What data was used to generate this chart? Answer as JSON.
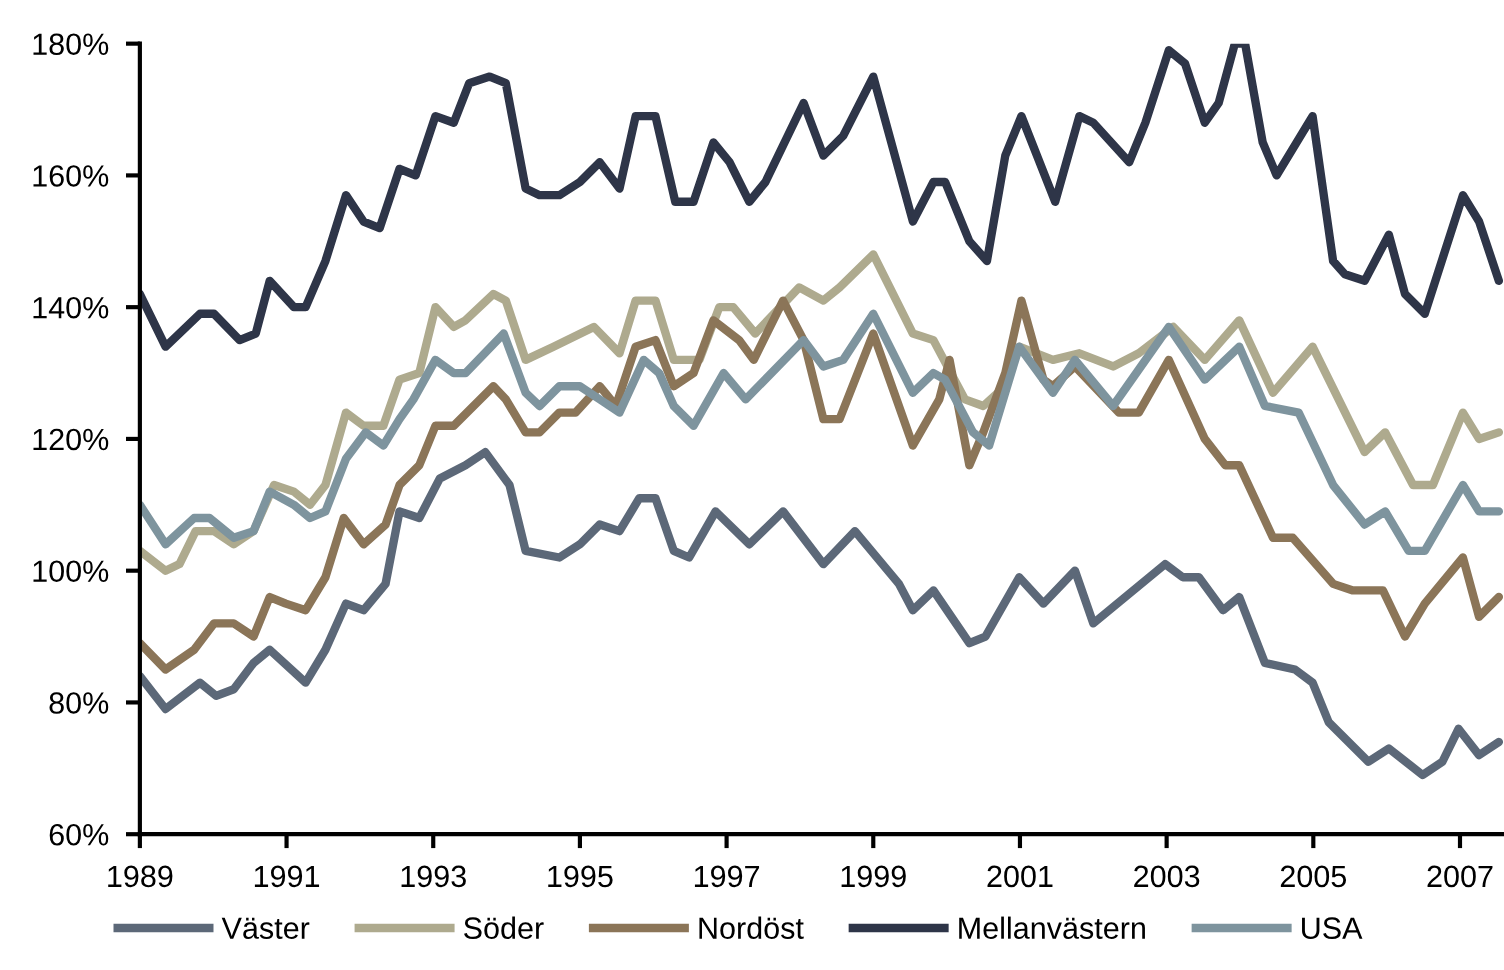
{
  "chart_data": {
    "type": "line",
    "xlim": [
      1989,
      2007.6
    ],
    "xticks": [
      1989,
      1991,
      1993,
      1995,
      1997,
      1999,
      2001,
      2003,
      2005,
      2007
    ],
    "ylim": [
      60,
      180
    ],
    "yticks": [
      {
        "value": 60,
        "label": "60%"
      },
      {
        "value": 80,
        "label": "80%"
      },
      {
        "value": 100,
        "label": "100%"
      },
      {
        "value": 120,
        "label": "120%"
      },
      {
        "value": 140,
        "label": "140%"
      },
      {
        "value": 160,
        "label": "160%"
      },
      {
        "value": 180,
        "label": "180%"
      }
    ],
    "grid": false,
    "legend": "bottom",
    "marker": "none",
    "line_style": "solid",
    "series": [
      {
        "name": "Väster",
        "color": "#5c6878",
        "x": [
          1989.0,
          1989.35,
          1989.82,
          1990.04,
          1990.28,
          1990.55,
          1990.77,
          1991.26,
          1991.53,
          1991.81,
          1992.05,
          1992.35,
          1992.54,
          1992.81,
          1993.09,
          1993.44,
          1993.71,
          1994.04,
          1994.26,
          1994.72,
          1995.0,
          1995.27,
          1995.54,
          1995.81,
          1996.03,
          1996.28,
          1996.49,
          1996.85,
          1997.31,
          1997.77,
          1998.32,
          1998.75,
          1999.35,
          1999.54,
          1999.82,
          2000.31,
          2000.53,
          2000.99,
          2001.32,
          2001.75,
          2002.0,
          2002.98,
          2003.22,
          2003.44,
          2003.77,
          2003.99,
          2004.34,
          2004.75,
          2004.99,
          2005.21,
          2005.75,
          2006.03,
          2006.49,
          2006.76,
          2006.98,
          2007.26,
          2007.53
        ],
        "values": [
          84,
          79,
          83,
          81,
          82,
          86,
          88,
          83,
          88,
          95,
          94,
          98,
          109,
          108,
          114,
          116,
          118,
          113,
          103,
          102,
          104,
          107,
          106,
          111,
          111,
          103,
          102,
          109,
          104,
          109,
          101,
          106,
          98,
          94,
          97,
          89,
          90,
          99,
          95,
          100,
          92,
          101,
          99,
          99,
          94,
          96,
          86,
          85,
          83,
          77,
          71,
          73,
          69,
          71,
          76,
          72,
          74
        ]
      },
      {
        "name": "Söder",
        "color": "#aeaa8e",
        "x": [
          1989.0,
          1989.35,
          1989.54,
          1989.76,
          1990.01,
          1990.28,
          1990.55,
          1990.83,
          1991.1,
          1991.32,
          1991.53,
          1991.81,
          1992.05,
          1992.32,
          1992.54,
          1992.81,
          1993.03,
          1993.28,
          1993.44,
          1993.82,
          1993.99,
          1994.26,
          1994.64,
          1995.19,
          1995.54,
          1995.76,
          1996.03,
          1996.28,
          1996.63,
          1996.9,
          1997.09,
          1997.39,
          1997.99,
          1998.32,
          1998.54,
          1999.0,
          1999.54,
          1999.82,
          2000.25,
          2000.5,
          2000.8,
          2000.99,
          2001.45,
          2001.81,
          2002.27,
          2002.62,
          2003.09,
          2003.52,
          2003.99,
          2004.45,
          2004.99,
          2005.7,
          2005.98,
          2006.36,
          2006.63,
          2007.04,
          2007.26,
          2007.53
        ],
        "values": [
          103,
          100,
          101,
          106,
          106,
          104,
          106,
          113,
          112,
          110,
          113,
          124,
          122,
          122,
          129,
          130,
          140,
          137,
          138,
          142,
          141,
          132,
          134,
          137,
          133,
          141,
          141,
          132,
          132,
          140,
          140,
          136,
          143,
          141,
          143,
          148,
          136,
          135,
          126,
          125,
          128,
          134,
          132,
          133,
          131,
          133,
          137,
          132,
          138,
          127,
          134,
          118,
          121,
          113,
          113,
          124,
          120,
          121
        ]
      },
      {
        "name": "Nordöst",
        "color": "#8b7558",
        "x": [
          1989.0,
          1989.35,
          1989.74,
          1990.01,
          1990.28,
          1990.55,
          1990.77,
          1990.99,
          1991.26,
          1991.53,
          1991.78,
          1992.05,
          1992.35,
          1992.54,
          1992.81,
          1993.03,
          1993.28,
          1993.82,
          1993.99,
          1994.26,
          1994.45,
          1994.72,
          1994.94,
          1995.27,
          1995.49,
          1995.76,
          1996.03,
          1996.28,
          1996.55,
          1996.82,
          1997.17,
          1997.37,
          1997.77,
          1998.05,
          1998.32,
          1998.54,
          1999.0,
          1999.54,
          1999.9,
          2000.04,
          2000.31,
          2000.5,
          2000.8,
          2001.02,
          2001.32,
          2001.45,
          2001.75,
          2002.35,
          2002.62,
          2003.03,
          2003.52,
          2003.8,
          2003.99,
          2004.45,
          2004.72,
          2005.27,
          2005.54,
          2005.95,
          2006.25,
          2006.52,
          2007.04,
          2007.26,
          2007.53
        ],
        "values": [
          89,
          85,
          88,
          92,
          92,
          90,
          96,
          95,
          94,
          99,
          108,
          104,
          107,
          113,
          116,
          122,
          122,
          128,
          126,
          121,
          121,
          124,
          124,
          128,
          125,
          134,
          135,
          128,
          130,
          138,
          135,
          132,
          141,
          135,
          123,
          123,
          136,
          119,
          126,
          132,
          116,
          121,
          130,
          141,
          129,
          128,
          131,
          124,
          124,
          132,
          120,
          116,
          116,
          105,
          105,
          98,
          97,
          97,
          90,
          95,
          102,
          93,
          96
        ]
      },
      {
        "name": "Mellanvästern",
        "color": "#2e3548",
        "x": [
          1989.0,
          1989.35,
          1989.82,
          1990.01,
          1990.36,
          1990.58,
          1990.77,
          1991.1,
          1991.26,
          1991.53,
          1991.81,
          1992.05,
          1992.27,
          1992.54,
          1992.76,
          1993.03,
          1993.28,
          1993.49,
          1993.77,
          1993.99,
          1994.26,
          1994.45,
          1994.72,
          1995.0,
          1995.27,
          1995.54,
          1995.76,
          1996.03,
          1996.3,
          1996.55,
          1996.82,
          1997.04,
          1997.31,
          1997.53,
          1998.05,
          1998.32,
          1998.59,
          1999.0,
          1999.54,
          1999.82,
          1999.98,
          2000.31,
          2000.55,
          2000.8,
          2001.02,
          2001.48,
          2001.81,
          2002.0,
          2002.49,
          2002.71,
          2003.03,
          2003.25,
          2003.52,
          2003.71,
          2003.93,
          2004.07,
          2004.31,
          2004.5,
          2004.99,
          2005.27,
          2005.43,
          2005.7,
          2006.03,
          2006.25,
          2006.52,
          2007.04,
          2007.26,
          2007.53
        ],
        "values": [
          142,
          134,
          139,
          139,
          135,
          136,
          144,
          140,
          140,
          147,
          157,
          153,
          152,
          161,
          160,
          169,
          168,
          174,
          175,
          174,
          158,
          157,
          157,
          159,
          162,
          158,
          169,
          169,
          156,
          156,
          165,
          162,
          156,
          159,
          171,
          163,
          166,
          175,
          153,
          159,
          159,
          150,
          147,
          163,
          169,
          156,
          169,
          168,
          162,
          168,
          179,
          177,
          168,
          171,
          180,
          180,
          165,
          160,
          169,
          147,
          145,
          144,
          151,
          142,
          139,
          157,
          153,
          144
        ]
      },
      {
        "name": "USA",
        "color": "#7e949e",
        "x": [
          1989.0,
          1989.35,
          1989.74,
          1989.95,
          1990.28,
          1990.55,
          1990.77,
          1991.1,
          1991.32,
          1991.53,
          1991.81,
          1992.08,
          1992.32,
          1992.54,
          1992.73,
          1993.03,
          1993.28,
          1993.44,
          1993.96,
          1994.26,
          1994.45,
          1994.72,
          1995.0,
          1995.27,
          1995.54,
          1995.87,
          1996.08,
          1996.28,
          1996.55,
          1996.96,
          1997.26,
          1998.05,
          1998.32,
          1998.59,
          1999.0,
          1999.54,
          1999.82,
          1999.98,
          2000.36,
          2000.58,
          2000.99,
          2001.45,
          2001.75,
          2002.27,
          2003.03,
          2003.52,
          2003.99,
          2004.34,
          2004.8,
          2005.27,
          2005.7,
          2005.98,
          2006.3,
          2006.52,
          2007.04,
          2007.26,
          2007.53
        ],
        "values": [
          110,
          104,
          108,
          108,
          105,
          106,
          112,
          110,
          108,
          109,
          117,
          121,
          119,
          123,
          126,
          132,
          130,
          130,
          136,
          127,
          125,
          128,
          128,
          126,
          124,
          132,
          130,
          125,
          122,
          130,
          126,
          135,
          131,
          132,
          139,
          127,
          130,
          129,
          121,
          119,
          134,
          127,
          132,
          125,
          137,
          129,
          134,
          125,
          124,
          113,
          107,
          109,
          103,
          103,
          113,
          109,
          109
        ]
      }
    ]
  }
}
